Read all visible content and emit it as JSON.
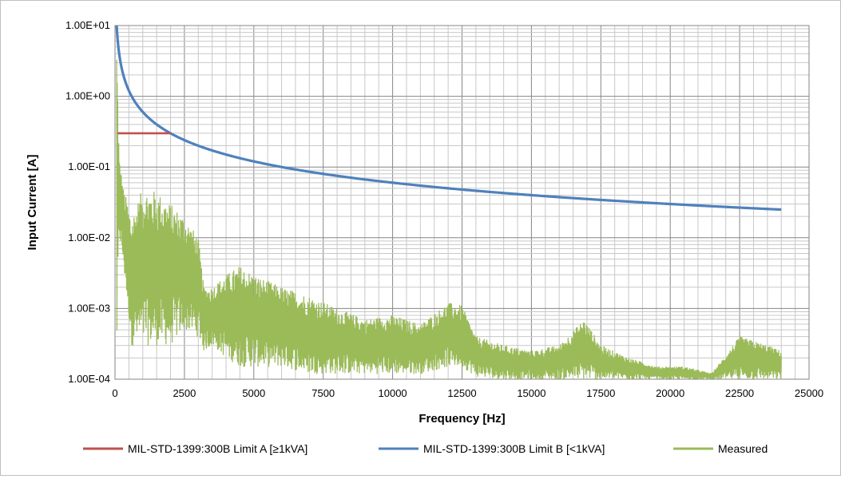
{
  "chart_data": {
    "type": "line",
    "xlabel": "Frequency [Hz]",
    "ylabel": "Input Current [A]",
    "xlim": [
      0,
      25000
    ],
    "ylim": [
      0.0001,
      10
    ],
    "y_scale": "log",
    "grid": true,
    "legend_position": "bottom",
    "x_ticks": [
      "0",
      "2500",
      "5000",
      "7500",
      "10000",
      "12500",
      "15000",
      "17500",
      "20000",
      "22500",
      "25000"
    ],
    "y_ticks": [
      "1.00E+01",
      "1.00E+00",
      "1.00E-01",
      "1.00E-02",
      "1.00E-03",
      "1.00E-04"
    ],
    "series": [
      {
        "name": "MIL-STD-1399:300B Limit A [≥1kVA]",
        "color": "#c0504d",
        "x": [
          100,
          2000
        ],
        "y": [
          0.3,
          0.3
        ]
      },
      {
        "name": "MIL-STD-1399:300B Limit B [<1kVA]",
        "color": "#4f81bd",
        "formula_note": "I = 600 / f",
        "x": [
          60,
          100,
          200,
          300,
          500,
          750,
          1000,
          1500,
          2000,
          2500,
          3000,
          4000,
          5000,
          6000,
          7500,
          10000,
          12500,
          15000,
          17500,
          20000,
          22500,
          24000
        ],
        "y": [
          10,
          6,
          3,
          2,
          1.2,
          0.8,
          0.6,
          0.4,
          0.3,
          0.24,
          0.2,
          0.15,
          0.12,
          0.1,
          0.08,
          0.06,
          0.048,
          0.04,
          0.0343,
          0.03,
          0.0267,
          0.025
        ]
      },
      {
        "name": "Measured",
        "color": "#9bbb59",
        "x": [
          60,
          150,
          300,
          600,
          1000,
          1500,
          2000,
          2500,
          3000,
          3200,
          3500,
          4000,
          4500,
          5000,
          6000,
          7000,
          8000,
          9000,
          10000,
          11000,
          12000,
          12500,
          13000,
          14000,
          15000,
          16000,
          16900,
          17500,
          18500,
          19500,
          20500,
          21500,
          22500,
          23500,
          24000
        ],
        "y_envelope_high": [
          10,
          0.14,
          0.05,
          0.02,
          0.05,
          0.045,
          0.03,
          0.02,
          0.01,
          0.002,
          0.002,
          0.003,
          0.004,
          0.003,
          0.002,
          0.0015,
          0.001,
          0.0007,
          0.0008,
          0.0006,
          0.0012,
          0.0011,
          0.0004,
          0.0003,
          0.00025,
          0.0003,
          0.0007,
          0.0003,
          0.0002,
          0.00015,
          0.00015,
          0.00012,
          0.0004,
          0.0003,
          0.00025
        ],
        "y_envelope_low": [
          0.0001,
          0.01,
          0.004,
          0.0003,
          0.0003,
          0.0003,
          0.0003,
          0.0005,
          0.0004,
          0.00025,
          0.0003,
          0.0002,
          0.00015,
          0.00015,
          0.00015,
          0.00012,
          0.00012,
          0.00012,
          0.00012,
          0.00012,
          0.00015,
          0.00015,
          0.00011,
          0.0001,
          0.0001,
          0.0001,
          0.0001,
          0.0001,
          0.0001,
          0.0001,
          0.0001,
          0.0001,
          0.0001,
          0.0001,
          0.0001
        ]
      }
    ]
  }
}
